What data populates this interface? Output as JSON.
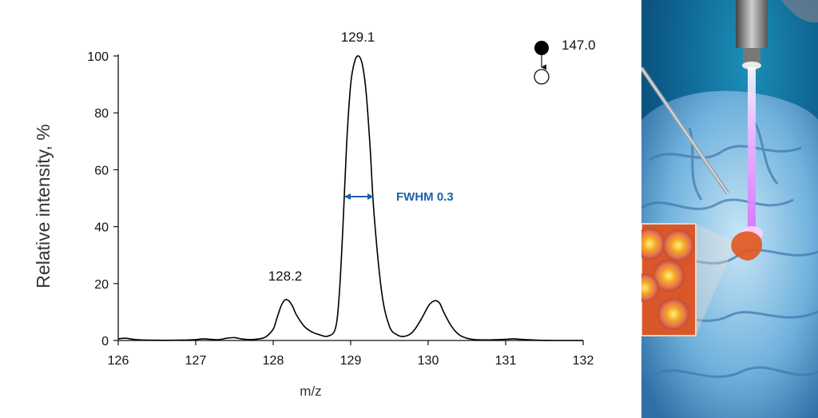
{
  "chart_data": {
    "type": "line",
    "xlabel": "m/z",
    "ylabel": "Relative intensity, %",
    "xlim": [
      126,
      132
    ],
    "ylim": [
      0,
      100
    ],
    "x_ticks": [
      "126",
      "127",
      "128",
      "129",
      "130",
      "131",
      "132"
    ],
    "y_ticks": [
      "0",
      "20",
      "40",
      "60",
      "80",
      "100"
    ],
    "grid": false,
    "series": [
      {
        "x": [
          126.0,
          126.1,
          126.2,
          126.4,
          126.8,
          127.0,
          127.1,
          127.2,
          127.3,
          127.4,
          127.5,
          127.6,
          127.7,
          127.8,
          127.9,
          128.0,
          128.05,
          128.1,
          128.15,
          128.2,
          128.25,
          128.3,
          128.4,
          128.5,
          128.6,
          128.7,
          128.8,
          128.85,
          128.9,
          128.95,
          129.0,
          129.05,
          129.1,
          129.15,
          129.2,
          129.25,
          129.3,
          129.4,
          129.5,
          129.6,
          129.7,
          129.8,
          129.9,
          130.0,
          130.05,
          130.1,
          130.15,
          130.2,
          130.3,
          130.4,
          130.5,
          130.6,
          130.8,
          131.0,
          131.1,
          131.2,
          131.4,
          131.6,
          132.0
        ],
        "y": [
          0.6,
          0.8,
          0.4,
          0.1,
          0.1,
          0.3,
          0.6,
          0.4,
          0.3,
          0.8,
          1.0,
          0.5,
          0.3,
          0.5,
          1.2,
          4.0,
          8.0,
          12.0,
          14.2,
          14.0,
          12.0,
          9.0,
          5.0,
          3.0,
          2.0,
          1.5,
          4.0,
          15.0,
          40.0,
          70.0,
          90.0,
          98.0,
          100.0,
          97.0,
          87.0,
          68.0,
          45.0,
          17.0,
          5.0,
          2.0,
          1.5,
          3.0,
          7.0,
          12.0,
          13.5,
          14.0,
          13.0,
          10.0,
          5.0,
          2.0,
          0.8,
          0.3,
          0.2,
          0.4,
          0.6,
          0.4,
          0.1,
          0.0,
          0.0
        ]
      }
    ],
    "annotations": {
      "peak_main": "129.1",
      "peak_left": "128.2",
      "fwhm": "FWHM 0.3",
      "precursor": "147.0"
    },
    "line_color": "#000000",
    "fwhm_color": "#1f5fa6"
  },
  "illustration": {
    "subject": "brain with laser probe illustration",
    "colors": {
      "background": "#0a4f7e",
      "beam": "#e8a0ff",
      "cells": "#d9572a"
    }
  }
}
